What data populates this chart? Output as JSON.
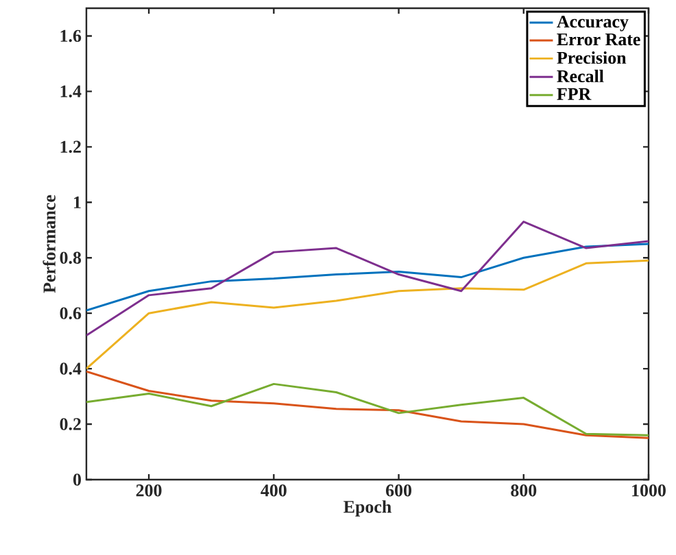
{
  "chart_data": {
    "type": "line",
    "xlabel": "Epoch",
    "ylabel": "Performance",
    "x": [
      100,
      200,
      300,
      400,
      500,
      600,
      700,
      800,
      900,
      1000
    ],
    "series": [
      {
        "name": "Accuracy",
        "color": "#0072bd",
        "values": [
          0.61,
          0.68,
          0.715,
          0.725,
          0.74,
          0.75,
          0.73,
          0.8,
          0.84,
          0.85
        ]
      },
      {
        "name": "Error Rate",
        "color": "#d95319",
        "values": [
          0.39,
          0.32,
          0.285,
          0.275,
          0.255,
          0.25,
          0.21,
          0.2,
          0.16,
          0.15
        ]
      },
      {
        "name": "Precision",
        "color": "#edb120",
        "values": [
          0.4,
          0.6,
          0.64,
          0.62,
          0.645,
          0.68,
          0.69,
          0.685,
          0.78,
          0.79
        ]
      },
      {
        "name": "Recall",
        "color": "#7e2f8e",
        "values": [
          0.52,
          0.665,
          0.69,
          0.82,
          0.835,
          0.74,
          0.68,
          0.93,
          0.835,
          0.86
        ]
      },
      {
        "name": "FPR",
        "color": "#77ac30",
        "values": [
          0.28,
          0.31,
          0.265,
          0.345,
          0.315,
          0.24,
          0.27,
          0.295,
          0.165,
          0.16
        ]
      }
    ],
    "xlim": [
      100,
      1000
    ],
    "ylim": [
      0,
      1.7
    ],
    "xticks": [
      200,
      400,
      600,
      800,
      1000
    ],
    "yticks": [
      0,
      0.2,
      0.4,
      0.6,
      0.8,
      1,
      1.2,
      1.4,
      1.6
    ],
    "legend": "top right",
    "grid": false,
    "marker": "none",
    "line_style": "solid"
  }
}
